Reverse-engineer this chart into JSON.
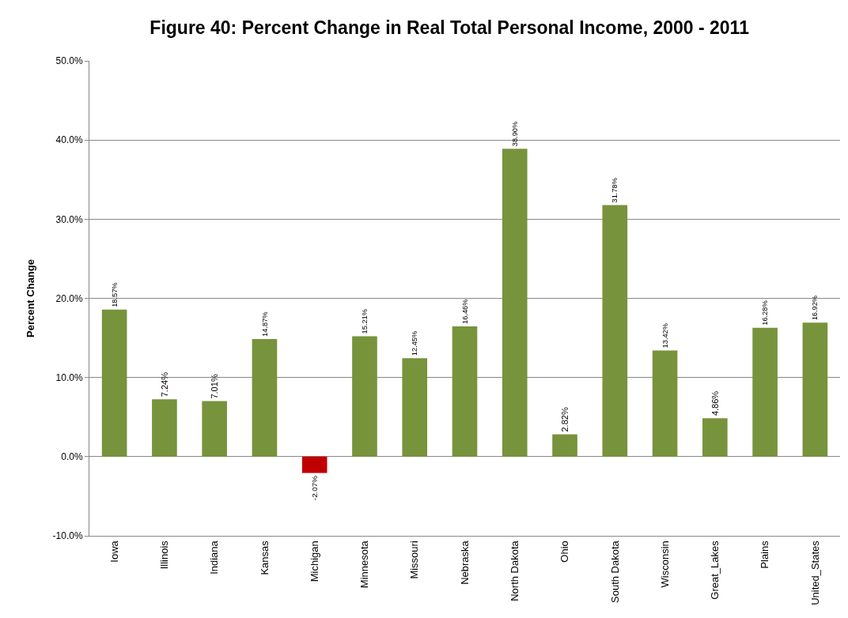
{
  "chart_data": {
    "type": "bar",
    "title": "Figure 40: Percent Change in Real Total Personal Income, 2000 - 2011",
    "ylabel": "Percent Change",
    "categories": [
      "Iowa",
      "Illinois",
      "Indiana",
      "Kansas",
      "Michigan",
      "Minnesota",
      "Missouri",
      "Nebraska",
      "North Dakota",
      "Ohio",
      "South Dakota",
      "Wisconsin",
      "Great_Lakes",
      "Plains",
      "United_States"
    ],
    "values": [
      18.57,
      7.24,
      7.01,
      14.87,
      -2.07,
      15.21,
      12.45,
      16.46,
      38.9,
      2.82,
      31.78,
      13.42,
      4.86,
      16.28,
      16.92
    ],
    "colors": [
      "#77933c",
      "#77933c",
      "#77933c",
      "#77933c",
      "#c00000",
      "#77933c",
      "#77933c",
      "#77933c",
      "#77933c",
      "#77933c",
      "#77933c",
      "#77933c",
      "#77933c",
      "#77933c",
      "#77933c"
    ],
    "value_labels": [
      "18.57%",
      "7.24%",
      "7.01%",
      "14.87%",
      "-2.07%",
      "15.21%",
      "12.45%",
      "16.46%",
      "38.90%",
      "2.82%",
      "31.78%",
      "13.42%",
      "4.86%",
      "16.28%",
      "16.92%"
    ],
    "ylim": [
      -10,
      50
    ],
    "yticks": [
      {
        "value": -10,
        "label": "-10.0%"
      },
      {
        "value": 0,
        "label": "0.0%"
      },
      {
        "value": 10,
        "label": "10.0%"
      },
      {
        "value": 20,
        "label": "20.0%"
      },
      {
        "value": 30,
        "label": "30.0%"
      },
      {
        "value": 40,
        "label": "40.0%"
      },
      {
        "value": 50,
        "label": "50.0%"
      }
    ],
    "grid": "y"
  }
}
